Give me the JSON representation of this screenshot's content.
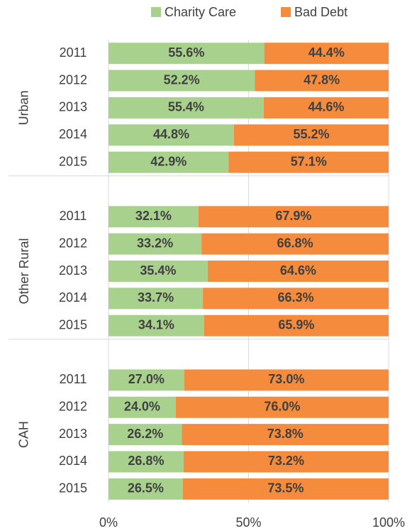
{
  "chart_data": {
    "type": "stacked-barh",
    "groups": [
      {
        "name": "Urban",
        "categories": [
          "2011",
          "2012",
          "2013",
          "2014",
          "2015"
        ]
      },
      {
        "name": "Other Rural",
        "categories": [
          "2011",
          "2012",
          "2013",
          "2014",
          "2015"
        ]
      },
      {
        "name": "CAH",
        "categories": [
          "2011",
          "2012",
          "2013",
          "2014",
          "2015"
        ]
      }
    ],
    "series": [
      {
        "name": "Charity Care",
        "color": "#a9d18e",
        "values": [
          55.6,
          52.2,
          55.4,
          44.8,
          42.9,
          32.1,
          33.2,
          35.4,
          33.7,
          34.1,
          27.0,
          24.0,
          26.2,
          26.8,
          26.5
        ],
        "value_labels": [
          "55.6%",
          "52.2%",
          "55.4%",
          "44.8%",
          "42.9%",
          "32.1%",
          "33.2%",
          "35.4%",
          "33.7%",
          "34.1%",
          "27.0%",
          "24.0%",
          "26.2%",
          "26.8%",
          "26.5%"
        ]
      },
      {
        "name": "Bad Debt",
        "color": "#f58b3c",
        "values": [
          44.4,
          47.8,
          44.6,
          55.2,
          57.1,
          67.9,
          66.8,
          64.6,
          66.3,
          65.9,
          73.0,
          76.0,
          73.8,
          73.2,
          73.5
        ],
        "value_labels": [
          "44.4%",
          "47.8%",
          "44.6%",
          "55.2%",
          "57.1%",
          "67.9%",
          "66.8%",
          "64.6%",
          "66.3%",
          "65.9%",
          "73.0%",
          "76.0%",
          "73.8%",
          "73.2%",
          "73.5%"
        ]
      }
    ],
    "xlim": [
      0,
      100
    ],
    "xticks": [
      {
        "value": 0,
        "label": "0%"
      },
      {
        "value": 50,
        "label": "50%"
      },
      {
        "value": 100,
        "label": "100%"
      }
    ],
    "grid": true,
    "legend": "top"
  }
}
